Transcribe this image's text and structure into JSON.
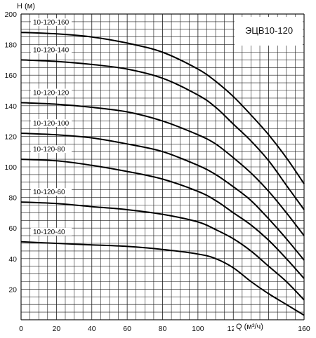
{
  "chart_data": {
    "type": "line",
    "title": "ЭЦВ10-120",
    "xlabel": "Q (м³/ч)",
    "ylabel": "Н (м)",
    "xlim": [
      0,
      160
    ],
    "ylim": [
      0,
      200
    ],
    "x_ticks": [
      "0",
      "20",
      "40",
      "60",
      "80",
      "100",
      "120",
      "140",
      "160"
    ],
    "y_ticks": [
      "20",
      "40",
      "60",
      "80",
      "100",
      "120",
      "140",
      "160",
      "180",
      "200"
    ],
    "grid": true,
    "series": [
      {
        "name": "10-120-160",
        "x": [
          0,
          20,
          40,
          60,
          80,
          100,
          110,
          120,
          130,
          140,
          150,
          160
        ],
        "y": [
          188,
          187,
          185,
          181,
          175,
          164,
          156,
          146,
          134,
          121,
          106,
          89
        ]
      },
      {
        "name": "10-120-140",
        "x": [
          0,
          20,
          40,
          60,
          80,
          100,
          110,
          120,
          130,
          140,
          150,
          160
        ],
        "y": [
          170,
          169,
          167,
          164,
          158,
          147,
          139,
          128,
          117,
          104,
          88,
          72
        ]
      },
      {
        "name": "10-120-120",
        "x": [
          0,
          20,
          40,
          60,
          80,
          100,
          110,
          120,
          130,
          140,
          150,
          160
        ],
        "y": [
          142,
          141,
          139,
          136,
          130,
          121,
          115,
          106,
          96,
          84,
          70,
          55
        ]
      },
      {
        "name": "10-120-100",
        "x": [
          0,
          20,
          40,
          60,
          80,
          100,
          110,
          120,
          130,
          140,
          150,
          160
        ],
        "y": [
          122,
          121,
          119,
          115,
          110,
          101,
          95,
          87,
          78,
          66,
          53,
          39
        ]
      },
      {
        "name": "10-120-80",
        "x": [
          0,
          20,
          40,
          60,
          80,
          100,
          110,
          120,
          130,
          140,
          150,
          160
        ],
        "y": [
          105,
          104,
          101,
          97,
          92,
          84,
          78,
          70,
          62,
          52,
          40,
          27
        ]
      },
      {
        "name": "10-120-60",
        "x": [
          0,
          20,
          40,
          60,
          80,
          100,
          110,
          120,
          130,
          140,
          150,
          160
        ],
        "y": [
          77,
          76,
          74,
          72,
          69,
          64,
          59,
          53,
          45,
          35,
          25,
          13
        ]
      },
      {
        "name": "10-120-40",
        "x": [
          0,
          20,
          40,
          60,
          80,
          100,
          110,
          120,
          130,
          140,
          150,
          160
        ],
        "y": [
          51,
          50,
          49,
          48,
          46,
          43,
          40,
          34,
          25,
          17,
          10,
          3
        ]
      }
    ]
  }
}
